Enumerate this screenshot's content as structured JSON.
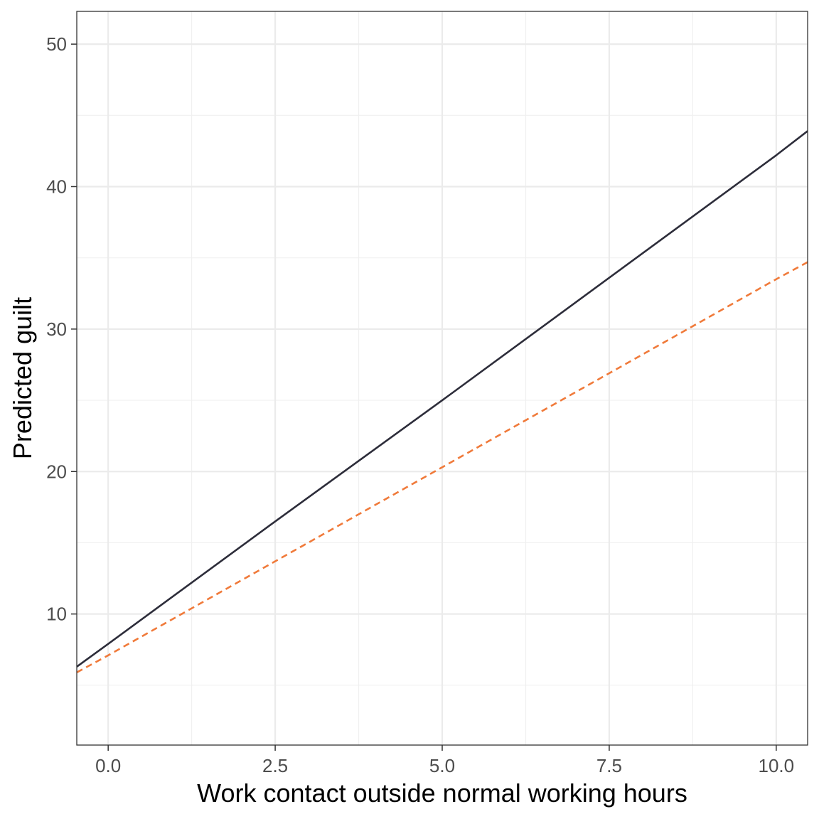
{
  "chart_data": {
    "type": "line",
    "title": "",
    "xlabel": "Work contact outside normal working hours",
    "ylabel": "Predicted guilt",
    "xlim": [
      -0.47,
      10.47
    ],
    "ylim": [
      0.8,
      52.3
    ],
    "x_ticks": [
      "0.0",
      "2.5",
      "5.0",
      "7.5",
      "10.0"
    ],
    "x_tick_values": [
      0,
      2.5,
      5,
      7.5,
      10
    ],
    "y_ticks": [
      "10",
      "20",
      "30",
      "40",
      "50"
    ],
    "y_tick_values": [
      10,
      20,
      30,
      40,
      50
    ],
    "grid": true,
    "legend": "none",
    "series": [
      {
        "style": "solid",
        "color": "#2d2d3a",
        "x": [
          -0.47,
          0,
          2.5,
          5,
          7.5,
          10,
          10.47
        ],
        "y": [
          6.3,
          7.9,
          16.5,
          25.0,
          33.6,
          42.2,
          43.9
        ]
      },
      {
        "style": "dashed",
        "color": "#f07a3a",
        "x": [
          -0.47,
          0,
          2.5,
          5,
          7.5,
          10,
          10.47
        ],
        "y": [
          5.9,
          7.1,
          13.7,
          20.3,
          26.9,
          33.5,
          34.7
        ]
      }
    ]
  }
}
